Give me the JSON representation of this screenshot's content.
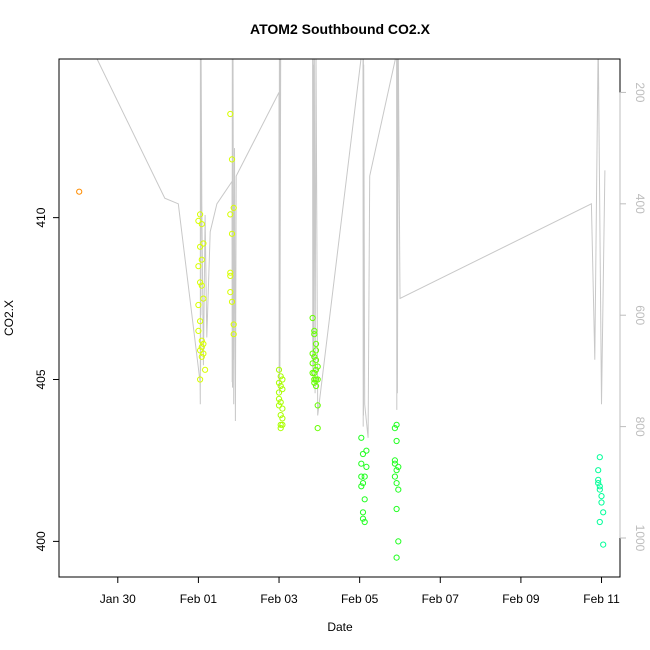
{
  "chart_data": {
    "type": "scatter",
    "title": "ATOM2 Southbound CO2.X",
    "xlabel": "Date",
    "ylabel": "CO2.X",
    "x_axis_type": "date",
    "xlim": [
      "2017-01-28T13:00",
      "2017-02-11T11:00"
    ],
    "ylim": [
      398.9,
      414.9
    ],
    "y_ticks": [
      400,
      405,
      410
    ],
    "x_tick_labels": [
      {
        "x": "2017-01-30",
        "label": "Jan 30"
      },
      {
        "x": "2017-02-01",
        "label": "Feb 01"
      },
      {
        "x": "2017-02-03",
        "label": "Feb 03"
      },
      {
        "x": "2017-02-05",
        "label": "Feb 05"
      },
      {
        "x": "2017-02-07",
        "label": "Feb 07"
      },
      {
        "x": "2017-02-09",
        "label": "Feb 09"
      },
      {
        "x": "2017-02-11",
        "label": "Feb 11"
      }
    ],
    "grid": false,
    "legend": "none",
    "secondary_axis": {
      "side": "right",
      "color": "#bdbdbd",
      "lim": [
        1070,
        140
      ],
      "ticks": [
        200,
        400,
        600,
        800,
        1000
      ],
      "series_color": "#c8c8c8",
      "series_type": "line",
      "series_values": [
        [
          "2017-01-28T13:00",
          140
        ],
        [
          "2017-01-29T02:00",
          80
        ],
        [
          "2017-01-31T04:00",
          390
        ],
        [
          "2017-01-31T12:00",
          400
        ],
        [
          "2017-02-01T01:00",
          720
        ],
        [
          "2017-02-01T01:06",
          760
        ],
        [
          "2017-02-01T01:12",
          100
        ],
        [
          "2017-02-01T01:18",
          700
        ],
        [
          "2017-02-01T01:24",
          120
        ],
        [
          "2017-02-01T01:30",
          600
        ],
        [
          "2017-02-01T01:36",
          130
        ],
        [
          "2017-02-01T02:00",
          400
        ],
        [
          "2017-02-01T03:00",
          690
        ],
        [
          "2017-02-01T04:00",
          420
        ],
        [
          "2017-02-01T05:00",
          640
        ],
        [
          "2017-02-01T07:00",
          450
        ],
        [
          "2017-02-01T11:00",
          400
        ],
        [
          "2017-02-01T20:00",
          360
        ],
        [
          "2017-02-01T20:06",
          720
        ],
        [
          "2017-02-01T20:12",
          120
        ],
        [
          "2017-02-01T20:18",
          730
        ],
        [
          "2017-02-01T20:24",
          140
        ],
        [
          "2017-02-01T20:30",
          680
        ],
        [
          "2017-02-01T20:36",
          100
        ],
        [
          "2017-02-01T21:00",
          760
        ],
        [
          "2017-02-01T21:30",
          300
        ],
        [
          "2017-02-01T22:00",
          790
        ],
        [
          "2017-02-01T22:30",
          350
        ],
        [
          "2017-02-03T00:00",
          200
        ],
        [
          "2017-02-03T00:06",
          720
        ],
        [
          "2017-02-03T00:12",
          120
        ],
        [
          "2017-02-03T00:18",
          740
        ],
        [
          "2017-02-03T00:24",
          100
        ],
        [
          "2017-02-03T00:30",
          700
        ],
        [
          "2017-02-03T01:00",
          120
        ],
        [
          "2017-02-03T20:00",
          130
        ],
        [
          "2017-02-03T20:06",
          700
        ],
        [
          "2017-02-03T20:12",
          100
        ],
        [
          "2017-02-03T20:18",
          720
        ],
        [
          "2017-02-03T20:24",
          150
        ],
        [
          "2017-02-03T20:30",
          690
        ],
        [
          "2017-02-03T21:00",
          100
        ],
        [
          "2017-02-03T21:30",
          740
        ],
        [
          "2017-02-03T22:00",
          120
        ],
        [
          "2017-02-03T23:00",
          780
        ],
        [
          "2017-02-05T02:00",
          110
        ],
        [
          "2017-02-05T02:06",
          800
        ],
        [
          "2017-02-05T02:12",
          130
        ],
        [
          "2017-02-05T02:18",
          780
        ],
        [
          "2017-02-05T02:24",
          150
        ],
        [
          "2017-02-05T03:00",
          760
        ],
        [
          "2017-02-05T05:00",
          820
        ],
        [
          "2017-02-05T06:00",
          350
        ],
        [
          "2017-02-05T22:00",
          130
        ],
        [
          "2017-02-05T22:06",
          770
        ],
        [
          "2017-02-05T22:12",
          110
        ],
        [
          "2017-02-05T22:18",
          740
        ],
        [
          "2017-02-05T22:24",
          140
        ],
        [
          "2017-02-05T22:30",
          740
        ],
        [
          "2017-02-05T23:00",
          120
        ],
        [
          "2017-02-06T00:00",
          570
        ],
        [
          "2017-02-10T18:00",
          400
        ],
        [
          "2017-02-10T20:00",
          680
        ],
        [
          "2017-02-10T22:00",
          100
        ],
        [
          "2017-02-11T00:00",
          760
        ],
        [
          "2017-02-11T02:00",
          340
        ]
      ]
    },
    "series": [
      {
        "color": "#ff8c00",
        "points": [
          [
            "2017-01-29T01:00",
            410.8
          ]
        ]
      },
      {
        "color": "#d8ff00",
        "points": [
          [
            "2017-02-01T00:00",
            409.9
          ],
          [
            "2017-02-01T00:00",
            408.5
          ],
          [
            "2017-02-01T00:00",
            407.3
          ],
          [
            "2017-02-01T00:00",
            406.5
          ],
          [
            "2017-02-01T01:00",
            410.1
          ],
          [
            "2017-02-01T01:00",
            409.1
          ],
          [
            "2017-02-01T01:00",
            408.0
          ],
          [
            "2017-02-01T01:00",
            406.8
          ],
          [
            "2017-02-01T01:00",
            405.9
          ],
          [
            "2017-02-01T01:00",
            405.0
          ],
          [
            "2017-02-01T02:00",
            409.8
          ],
          [
            "2017-02-01T02:00",
            408.7
          ],
          [
            "2017-02-01T02:00",
            407.9
          ],
          [
            "2017-02-01T02:00",
            406.2
          ],
          [
            "2017-02-01T02:00",
            406.0
          ],
          [
            "2017-02-01T02:00",
            405.7
          ],
          [
            "2017-02-01T03:00",
            409.2
          ],
          [
            "2017-02-01T03:00",
            407.5
          ],
          [
            "2017-02-01T03:00",
            406.1
          ],
          [
            "2017-02-01T03:00",
            405.8
          ],
          [
            "2017-02-01T04:00",
            405.3
          ],
          [
            "2017-02-01T19:00",
            413.2
          ],
          [
            "2017-02-01T19:00",
            410.1
          ],
          [
            "2017-02-01T19:00",
            408.3
          ],
          [
            "2017-02-01T19:00",
            407.7
          ],
          [
            "2017-02-01T20:00",
            411.8
          ],
          [
            "2017-02-01T20:00",
            409.5
          ],
          [
            "2017-02-01T20:00",
            407.4
          ],
          [
            "2017-02-01T21:00",
            410.3
          ],
          [
            "2017-02-01T21:00",
            406.7
          ],
          [
            "2017-02-01T21:00",
            406.4
          ],
          [
            "2017-02-01T19:00",
            408.2
          ]
        ]
      },
      {
        "color": "#aaff00",
        "points": [
          [
            "2017-02-03T00:00",
            405.3
          ],
          [
            "2017-02-03T00:00",
            404.9
          ],
          [
            "2017-02-03T00:00",
            404.6
          ],
          [
            "2017-02-03T00:00",
            404.4
          ],
          [
            "2017-02-03T00:00",
            404.2
          ],
          [
            "2017-02-03T01:00",
            405.1
          ],
          [
            "2017-02-03T01:00",
            404.8
          ],
          [
            "2017-02-03T01:00",
            404.3
          ],
          [
            "2017-02-03T01:00",
            403.9
          ],
          [
            "2017-02-03T01:00",
            403.6
          ],
          [
            "2017-02-03T01:00",
            403.5
          ],
          [
            "2017-02-03T02:00",
            405.0
          ],
          [
            "2017-02-03T02:00",
            404.7
          ],
          [
            "2017-02-03T02:00",
            404.1
          ],
          [
            "2017-02-03T02:00",
            403.8
          ],
          [
            "2017-02-03T02:00",
            403.6
          ]
        ]
      },
      {
        "color": "#66ff00",
        "points": [
          [
            "2017-02-03T20:00",
            406.9
          ],
          [
            "2017-02-03T20:00",
            405.8
          ],
          [
            "2017-02-03T20:00",
            405.5
          ],
          [
            "2017-02-03T20:00",
            405.2
          ],
          [
            "2017-02-03T21:00",
            406.5
          ],
          [
            "2017-02-03T21:00",
            406.4
          ],
          [
            "2017-02-03T21:00",
            405.7
          ],
          [
            "2017-02-03T21:00",
            405.0
          ],
          [
            "2017-02-03T21:00",
            404.9
          ],
          [
            "2017-02-03T22:00",
            406.1
          ],
          [
            "2017-02-03T22:00",
            405.6
          ],
          [
            "2017-02-03T22:00",
            405.3
          ],
          [
            "2017-02-03T22:00",
            405.0
          ],
          [
            "2017-02-03T22:00",
            404.8
          ],
          [
            "2017-02-03T23:00",
            405.4
          ],
          [
            "2017-02-03T23:00",
            405.0
          ],
          [
            "2017-02-03T23:00",
            404.2
          ],
          [
            "2017-02-03T23:00",
            403.5
          ],
          [
            "2017-02-03T21:00",
            405.2
          ],
          [
            "2017-02-03T22:00",
            405.9
          ]
        ]
      },
      {
        "color": "#22ff22",
        "points": [
          [
            "2017-02-05T01:00",
            403.2
          ],
          [
            "2017-02-05T01:00",
            402.4
          ],
          [
            "2017-02-05T01:00",
            402.0
          ],
          [
            "2017-02-05T01:00",
            401.7
          ],
          [
            "2017-02-05T02:00",
            402.7
          ],
          [
            "2017-02-05T02:00",
            401.8
          ],
          [
            "2017-02-05T02:00",
            400.9
          ],
          [
            "2017-02-05T02:00",
            400.7
          ],
          [
            "2017-02-05T03:00",
            401.3
          ],
          [
            "2017-02-05T03:00",
            400.6
          ],
          [
            "2017-02-05T04:00",
            402.8
          ],
          [
            "2017-02-05T04:00",
            402.3
          ],
          [
            "2017-02-05T03:00",
            402.0
          ],
          [
            "2017-02-05T21:00",
            403.5
          ],
          [
            "2017-02-05T21:00",
            402.4
          ],
          [
            "2017-02-05T21:00",
            402.0
          ],
          [
            "2017-02-05T22:00",
            403.6
          ],
          [
            "2017-02-05T22:00",
            403.1
          ],
          [
            "2017-02-05T22:00",
            402.2
          ],
          [
            "2017-02-05T22:00",
            401.8
          ],
          [
            "2017-02-05T22:00",
            401.0
          ],
          [
            "2017-02-05T22:00",
            399.5
          ],
          [
            "2017-02-05T23:00",
            402.3
          ],
          [
            "2017-02-05T23:00",
            401.6
          ],
          [
            "2017-02-05T23:00",
            400.0
          ],
          [
            "2017-02-05T21:00",
            402.5
          ]
        ]
      },
      {
        "color": "#00ff99",
        "points": [
          [
            "2017-02-10T22:00",
            402.2
          ],
          [
            "2017-02-10T22:00",
            401.9
          ],
          [
            "2017-02-10T23:00",
            402.6
          ],
          [
            "2017-02-10T23:00",
            401.6
          ],
          [
            "2017-02-10T23:00",
            400.6
          ],
          [
            "2017-02-11T00:00",
            401.4
          ],
          [
            "2017-02-11T00:00",
            401.2
          ],
          [
            "2017-02-11T01:00",
            400.9
          ],
          [
            "2017-02-11T01:00",
            399.9
          ],
          [
            "2017-02-10T22:00",
            401.8
          ],
          [
            "2017-02-10T23:00",
            401.7
          ]
        ]
      }
    ]
  }
}
